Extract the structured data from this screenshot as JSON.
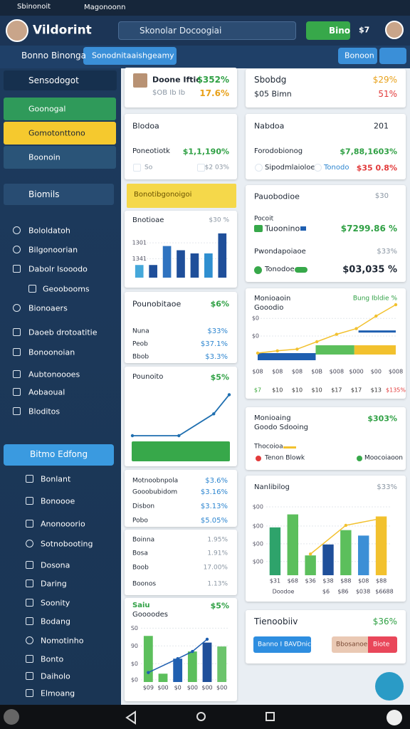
{
  "tabs": [
    "Sbinonoit",
    "Magonoonn"
  ],
  "header": {
    "title": "Vildorint",
    "search": "Skonolar Docoogiai",
    "button": "Bino",
    "badge": "$7"
  },
  "toolbar": {
    "title": "Bonno Binonga",
    "button": "Sonodnitaaishgeamy",
    "right_button": "Bonoon"
  },
  "sidebar": {
    "top": "Sensodogot",
    "pills": [
      "Goonogal",
      "Gomotonttono",
      "Boonoin"
    ],
    "section": "Biomils",
    "items": [
      "Bololdatoh",
      "Bilgonoorian",
      "Dabolr Isooodo",
      "Geoobooms",
      "Bionoaers",
      "Daoeb drotoatitie",
      "Bonoonoian",
      "Aubtonoooes",
      "Aobaoual",
      "Bloditos"
    ],
    "active": "Bitmo Edfong",
    "sub_items": [
      "Bonlant",
      "Bonoooe",
      "Anonooorio",
      "Sotnobooting",
      "Dosona",
      "Daring",
      "Soonity",
      "Bodang",
      "Nomotinho",
      "Bonto",
      "Daiholo",
      "Elmoang"
    ]
  },
  "left": {
    "profile": {
      "name": "Doone Iftic",
      "value": "$352%",
      "sub": "$OB Ib Ib",
      "change": "17.6%"
    },
    "summary": {
      "title": "Blodoa",
      "rows": [
        [
          "Poneotiotk",
          "$1,1,190%"
        ],
        [
          "So",
          "$2 03%"
        ]
      ]
    },
    "banner": "Bonotibgonoigoi",
    "bar_card": {
      "title": "Bnotioae",
      "value": "$30 %",
      "chart": {
        "type": "bar",
        "ylim": [
          0,
          100
        ],
        "yticks": [
          {
            "value": 66,
            "label": "1301"
          },
          {
            "value": 36,
            "label": "1341"
          }
        ],
        "values": [
          24,
          24,
          60,
          52,
          46,
          46,
          84
        ],
        "colors": [
          "#45a8da",
          "#1f4f9a",
          "#2f73c0",
          "#1f4f9a",
          "#1f4f9a",
          "#2f8fd0",
          "#1f4f9a"
        ]
      }
    },
    "rate_card": {
      "title": "Pounobitaoe",
      "value": "$6%",
      "rows": [
        [
          "Nuna",
          "$33%"
        ],
        [
          "Peob",
          "$37.1%"
        ],
        [
          "Bbob",
          "$3.3%"
        ]
      ]
    },
    "trend_card": {
      "title": "Pounoito",
      "value": "$5%",
      "chart": {
        "type": "line",
        "x": [
          0,
          48,
          84,
          100
        ],
        "xlim": [
          0,
          100
        ],
        "values": [
          0,
          0,
          48,
          90
        ],
        "ylim": [
          0,
          100
        ],
        "color": "#1f6fb0"
      }
    },
    "list_a": [
      [
        "Motnoobnpola",
        "$3.6%"
      ],
      [
        "Gooobubidom",
        "$3.16%"
      ],
      [
        "Disbon",
        "$3.13%"
      ],
      [
        "Pobo",
        "$5.05%"
      ]
    ],
    "list_b": [
      [
        "Boinna",
        "1.95%"
      ],
      [
        "Bosa",
        "1.91%"
      ],
      [
        "Boob",
        "17.00%"
      ],
      [
        "Boonos",
        "1.13%"
      ]
    ],
    "combo_card": {
      "title": "Saiu",
      "subtitle": "Goooodes",
      "value": "$5%",
      "chart": {
        "type": "bar",
        "ylim": [
          0,
          100
        ],
        "yticks": [
          {
            "value": 97,
            "label": "S0"
          },
          {
            "value": 65,
            "label": "90"
          },
          {
            "value": 33,
            "label": "$0"
          },
          {
            "value": 4,
            "label": "$0"
          }
        ],
        "categories": [
          "$09",
          "$00",
          "$0",
          "$00",
          "$00",
          "$00"
        ],
        "values": [
          83,
          15,
          42,
          55,
          71,
          64
        ],
        "colors": [
          "#5cbf5c",
          "#5cbf5c",
          "#1f5fb0",
          "#5cbf5c",
          "#1f4f9a",
          "#6cc46c"
        ],
        "line": {
          "x": [
            0,
            2,
            3,
            4
          ],
          "values": [
            17,
            42,
            55,
            77
          ],
          "color": "#1f5fb0"
        }
      }
    }
  },
  "right": {
    "stats": {
      "title": "Sbobdg",
      "value": "$29%",
      "sub": "$05 Bimn",
      "change": "51%"
    },
    "detail": {
      "title": "Nabdoa",
      "count": "201",
      "row_label": "Forodobionog",
      "row_value": "$7,88,1603%",
      "sub_label": "Sipodmlaioloe",
      "sub_tag": "Tonodo",
      "sub_value": "$35 0.8%"
    },
    "progress": {
      "title": "Pauobodioe",
      "count": "$30",
      "label": "Pocoit",
      "item": "Tuoonino",
      "item_value": "$7299.86 %",
      "label2": "Pwondapoiaoe",
      "label2_value": "$33%",
      "item2": "Tonodoe",
      "item2_value": "$03,035 %"
    },
    "line_card": {
      "title": "Monioaoin",
      "subtitle": "Gooodio",
      "value": "Bung Ibldie %",
      "chart": {
        "type": "line",
        "ylim": [
          0,
          100
        ],
        "yticks": [
          {
            "value": 66,
            "label": "$0"
          },
          {
            "value": 35,
            "label": "$0"
          }
        ],
        "categories": [
          "$08",
          "$08",
          "$08",
          "$0B",
          "$008",
          "$000",
          "$00",
          "$008"
        ],
        "values": [
          5,
          9,
          12,
          25,
          38,
          48,
          70,
          90
        ],
        "color": "#f2c12e",
        "target": 43,
        "target_color": "#1f5fb0",
        "stack": [
          42,
          28,
          30
        ],
        "stack_colors": [
          "#1f5fb0",
          "#5cbf5c",
          "#f2c12e"
        ],
        "totals": [
          "$7",
          "$10",
          "$10",
          "$10",
          "$17",
          "$17",
          "$13",
          "$135%"
        ],
        "totals_colors": [
          "#3aa83a",
          "#333",
          "#333",
          "#333",
          "#333",
          "#333",
          "#333",
          "#e23b3b"
        ]
      }
    },
    "legend_card": {
      "title": "Monioaing",
      "subtitle": "Goodo Sdooing",
      "value": "$303%",
      "label": "Thocoioa",
      "legend": [
        "Tenon Blowk",
        "Moocoiaoon"
      ]
    },
    "bar_card": {
      "title": "Nanlibilog",
      "value": "$33%",
      "chart": {
        "type": "bar",
        "ylim": [
          0,
          100
        ],
        "yticks": [
          {
            "value": 100,
            "label": "$00"
          },
          {
            "value": 72,
            "label": "$00"
          },
          {
            "value": 46,
            "label": "$00"
          },
          {
            "value": 20,
            "label": "$00"
          }
        ],
        "categories": [
          "$31",
          "$68",
          "$36",
          "$38",
          "$88",
          "$08",
          "$88"
        ],
        "values": [
          70,
          89,
          29,
          45,
          66,
          58,
          86
        ],
        "colors": [
          "#2ea36b",
          "#5cbf5c",
          "#5cbf5c",
          "#1f4f9a",
          "#5cbf5c",
          "#3c8fd6",
          "#f2c12e"
        ],
        "line": {
          "x": [
            2,
            4,
            6
          ],
          "values": [
            31,
            73,
            83
          ],
          "color": "#f2c12e"
        },
        "footer": [
          "Doodoe",
          "$6",
          "$86",
          "$038",
          "$6688"
        ]
      }
    },
    "action_card": {
      "title": "Tienoobiiv",
      "value": "$36%",
      "buttons": [
        "Banno I BAVDnic",
        "Bbosanoe",
        "Biote"
      ]
    }
  }
}
